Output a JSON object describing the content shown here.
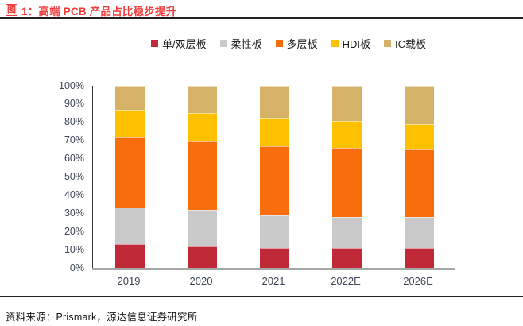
{
  "header": {
    "figure_tag": "图",
    "title": "1：高端 PCB 产品占比稳步提升"
  },
  "chart_data": {
    "type": "bar",
    "stacked": true,
    "unit": "percent",
    "categories": [
      "2019",
      "2020",
      "2021",
      "2022E",
      "2026E"
    ],
    "series": [
      {
        "name": "单/双层板",
        "color": "#C02938",
        "values": [
          13,
          12,
          11,
          11,
          11
        ]
      },
      {
        "name": "柔性板",
        "color": "#C9C9C9",
        "values": [
          20,
          20,
          18,
          17,
          17
        ]
      },
      {
        "name": "多层板",
        "color": "#F96D0C",
        "values": [
          39,
          38,
          38,
          38,
          37
        ]
      },
      {
        "name": "HDI板",
        "color": "#FFC000",
        "values": [
          15,
          15,
          15,
          15,
          14
        ]
      },
      {
        "name": "IC载板",
        "color": "#D6B269",
        "values": [
          13,
          15,
          18,
          19,
          21
        ]
      }
    ],
    "ylim": [
      0,
      100
    ],
    "yticks": [
      "0%",
      "10%",
      "20%",
      "30%",
      "40%",
      "50%",
      "60%",
      "70%",
      "80%",
      "90%",
      "100%"
    ],
    "grid": false,
    "legend_position": "top"
  },
  "footer": {
    "source": "资料来源：Prismark，源达信息证券研究所"
  },
  "colors": {
    "title_red": "#F23C3C",
    "rule": "#212121",
    "axis_text": "#3D4554",
    "axis_line": "#333333",
    "baseline": "#A6A6A6"
  }
}
